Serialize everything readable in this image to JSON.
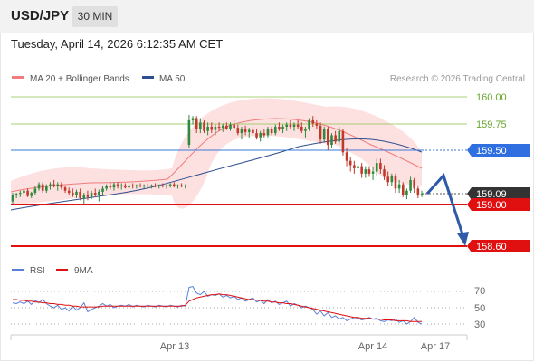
{
  "header": {
    "symbol": "USD/JPY",
    "timeframe": "30 MIN",
    "timestamp": "Tuesday, April 14, 2026 6:12:35 AM CET"
  },
  "legend": {
    "ma20_label": "MA 20 + Bollinger Bands",
    "ma50_label": "MA 50",
    "credit": "Research © 2026 Trading Central",
    "colors": {
      "ma20": "#f07c7c",
      "ma50": "#2e4f8f",
      "bollinger_fill": "#fde0e0"
    }
  },
  "levels": {
    "r2": {
      "label": "160.00",
      "color": "#8bc34a"
    },
    "r1": {
      "label": "159.75",
      "color": "#8bc34a"
    },
    "pivot": {
      "label": "159.50",
      "color": "#3a78d8"
    },
    "current": {
      "label": "159.09",
      "color": "#333333"
    },
    "s1": {
      "label": "159.00",
      "color": "#e01010"
    },
    "s2": {
      "label": "158.60",
      "color": "#e01010"
    }
  },
  "rsi": {
    "rsi_label": "RSI",
    "ma_label": "9MA",
    "levels": [
      "70",
      "50",
      "30"
    ],
    "colors": {
      "rsi": "#5b7fd6",
      "ma": "#e01010"
    }
  },
  "xaxis": {
    "labels": [
      "Apr 13",
      "Apr 14",
      "Apr 17"
    ]
  },
  "chart_data": {
    "type": "candlestick",
    "price_ylim": [
      158.55,
      160.05
    ],
    "candles_ohlc": [
      [
        159.02,
        159.1,
        159.0,
        159.08
      ],
      [
        159.08,
        159.1,
        159.05,
        159.09
      ],
      [
        159.09,
        159.12,
        159.06,
        159.1
      ],
      [
        159.1,
        159.14,
        159.08,
        159.12
      ],
      [
        159.12,
        159.14,
        159.06,
        159.07
      ],
      [
        159.07,
        159.11,
        159.05,
        159.1
      ],
      [
        159.1,
        159.16,
        159.08,
        159.14
      ],
      [
        159.14,
        159.2,
        159.12,
        159.18
      ],
      [
        159.18,
        159.2,
        159.1,
        159.12
      ],
      [
        159.12,
        159.18,
        159.1,
        159.16
      ],
      [
        159.16,
        159.2,
        159.13,
        159.18
      ],
      [
        159.18,
        159.22,
        159.15,
        159.16
      ],
      [
        159.16,
        159.2,
        159.12,
        159.18
      ],
      [
        159.18,
        159.2,
        159.13,
        159.15
      ],
      [
        159.15,
        159.17,
        159.1,
        159.12
      ],
      [
        159.12,
        159.15,
        159.08,
        159.1
      ],
      [
        159.1,
        159.14,
        159.06,
        159.08
      ],
      [
        159.08,
        159.13,
        159.05,
        159.11
      ],
      [
        159.11,
        159.14,
        159.03,
        159.05
      ],
      [
        159.05,
        159.1,
        159.0,
        159.08
      ],
      [
        159.08,
        159.12,
        159.03,
        159.06
      ],
      [
        159.06,
        159.12,
        159.04,
        159.1
      ],
      [
        159.1,
        159.14,
        159.06,
        159.08
      ],
      [
        159.08,
        159.13,
        159.02,
        159.11
      ],
      [
        159.11,
        159.16,
        159.08,
        159.14
      ],
      [
        159.14,
        159.18,
        159.12,
        159.16
      ],
      [
        159.16,
        159.2,
        159.13,
        159.15
      ],
      [
        159.15,
        159.2,
        159.12,
        159.18
      ],
      [
        159.18,
        159.2,
        159.14,
        159.16
      ],
      [
        159.16,
        159.19,
        159.13,
        159.17
      ],
      [
        159.17,
        159.19,
        159.14,
        159.15
      ],
      [
        159.15,
        159.18,
        159.13,
        159.17
      ],
      [
        159.17,
        159.19,
        159.14,
        159.16
      ],
      [
        159.16,
        159.18,
        159.14,
        159.17
      ],
      [
        159.17,
        159.19,
        159.15,
        159.16
      ],
      [
        159.16,
        159.18,
        159.14,
        159.17
      ],
      [
        159.17,
        159.19,
        159.15,
        159.16
      ],
      [
        159.16,
        159.18,
        159.14,
        159.17
      ],
      [
        159.17,
        159.19,
        159.15,
        159.16
      ],
      [
        159.16,
        159.18,
        159.14,
        159.17
      ],
      [
        159.17,
        159.19,
        159.15,
        159.16
      ],
      [
        159.16,
        159.18,
        159.14,
        159.17
      ],
      [
        159.17,
        159.19,
        159.15,
        159.18
      ],
      [
        159.18,
        159.2,
        159.15,
        159.16
      ],
      [
        159.16,
        159.18,
        159.14,
        159.17
      ],
      [
        159.17,
        159.19,
        159.15,
        159.16
      ],
      [
        159.16,
        159.18,
        159.14,
        159.17
      ],
      [
        159.55,
        159.83,
        159.52,
        159.78
      ],
      [
        159.78,
        159.82,
        159.74,
        159.8
      ],
      [
        159.8,
        159.82,
        159.66,
        159.7
      ],
      [
        159.7,
        159.8,
        159.66,
        159.76
      ],
      [
        159.76,
        159.78,
        159.66,
        159.68
      ],
      [
        159.68,
        159.76,
        159.64,
        159.72
      ],
      [
        159.72,
        159.76,
        159.66,
        159.69
      ],
      [
        159.69,
        159.74,
        159.64,
        159.72
      ],
      [
        159.72,
        159.76,
        159.68,
        159.71
      ],
      [
        159.71,
        159.75,
        159.67,
        159.73
      ],
      [
        159.73,
        159.76,
        159.69,
        159.7
      ],
      [
        159.7,
        159.76,
        159.68,
        159.74
      ],
      [
        159.74,
        159.78,
        159.7,
        159.71
      ],
      [
        159.71,
        159.74,
        159.64,
        159.66
      ],
      [
        159.66,
        159.72,
        159.6,
        159.7
      ],
      [
        159.7,
        159.73,
        159.64,
        159.67
      ],
      [
        159.67,
        159.71,
        159.62,
        159.69
      ],
      [
        159.69,
        159.72,
        159.64,
        159.66
      ],
      [
        159.66,
        159.7,
        159.6,
        159.62
      ],
      [
        159.62,
        159.68,
        159.58,
        159.66
      ],
      [
        159.66,
        159.7,
        159.62,
        159.64
      ],
      [
        159.64,
        159.72,
        159.62,
        159.7
      ],
      [
        159.7,
        159.72,
        159.64,
        159.66
      ],
      [
        159.66,
        159.74,
        159.64,
        159.72
      ],
      [
        159.72,
        159.76,
        159.68,
        159.7
      ],
      [
        159.7,
        159.74,
        159.66,
        159.72
      ],
      [
        159.72,
        159.76,
        159.68,
        159.74
      ],
      [
        159.74,
        159.78,
        159.7,
        159.72
      ],
      [
        159.72,
        159.76,
        159.68,
        159.74
      ],
      [
        159.74,
        159.78,
        159.7,
        159.72
      ],
      [
        159.72,
        159.76,
        159.66,
        159.68
      ],
      [
        159.68,
        159.72,
        159.62,
        159.7
      ],
      [
        159.7,
        159.8,
        159.68,
        159.78
      ],
      [
        159.78,
        159.82,
        159.72,
        159.75
      ],
      [
        159.75,
        159.78,
        159.7,
        159.73
      ],
      [
        159.73,
        159.76,
        159.56,
        159.6
      ],
      [
        159.6,
        159.72,
        159.58,
        159.7
      ],
      [
        159.7,
        159.72,
        159.5,
        159.55
      ],
      [
        159.55,
        159.66,
        159.52,
        159.64
      ],
      [
        159.64,
        159.68,
        159.56,
        159.58
      ],
      [
        159.58,
        159.72,
        159.55,
        159.68
      ],
      [
        159.68,
        159.7,
        159.45,
        159.48
      ],
      [
        159.48,
        159.52,
        159.35,
        159.4
      ],
      [
        159.4,
        159.44,
        159.3,
        159.36
      ],
      [
        159.36,
        159.4,
        159.28,
        159.33
      ],
      [
        159.33,
        159.38,
        159.28,
        159.35
      ],
      [
        159.35,
        159.38,
        159.24,
        159.28
      ],
      [
        159.28,
        159.35,
        159.24,
        159.32
      ],
      [
        159.32,
        159.35,
        159.25,
        159.28
      ],
      [
        159.28,
        159.34,
        159.22,
        159.3
      ],
      [
        159.3,
        159.42,
        159.26,
        159.38
      ],
      [
        159.38,
        159.42,
        159.28,
        159.32
      ],
      [
        159.32,
        159.36,
        159.22,
        159.25
      ],
      [
        159.25,
        159.3,
        159.16,
        159.2
      ],
      [
        159.2,
        159.28,
        159.16,
        159.26
      ],
      [
        159.26,
        159.28,
        159.1,
        159.14
      ],
      [
        159.14,
        159.22,
        159.1,
        159.18
      ],
      [
        159.18,
        159.2,
        159.06,
        159.08
      ],
      [
        159.08,
        159.14,
        159.04,
        159.12
      ],
      [
        159.12,
        159.25,
        159.1,
        159.22
      ],
      [
        159.22,
        159.24,
        159.1,
        159.14
      ],
      [
        159.14,
        159.16,
        159.05,
        159.08
      ],
      [
        159.08,
        159.12,
        159.06,
        159.09
      ]
    ],
    "rsi_ylim": [
      20,
      80
    ],
    "rsi_values": [
      56,
      55,
      57,
      55,
      58,
      54,
      59,
      56,
      60,
      55,
      52,
      50,
      53,
      48,
      50,
      46,
      52,
      47,
      50,
      56,
      45,
      48,
      50,
      52,
      55,
      52,
      54,
      50,
      52,
      53,
      52,
      54,
      51,
      53,
      52,
      51,
      53,
      52,
      51,
      53,
      52,
      51,
      53,
      52,
      51,
      53,
      52,
      75,
      76,
      68,
      66,
      70,
      64,
      66,
      65,
      67,
      63,
      65,
      62,
      64,
      60,
      62,
      58,
      60,
      62,
      57,
      59,
      55,
      60,
      56,
      58,
      54,
      56,
      58,
      52,
      55,
      53,
      50,
      52,
      50,
      48,
      42,
      46,
      40,
      44,
      38,
      40,
      36,
      38,
      34,
      36,
      38,
      37,
      35,
      36,
      38,
      36,
      37,
      34,
      33,
      35,
      34,
      36,
      32,
      34,
      30,
      33,
      38,
      32,
      30
    ],
    "rsi_ma_values": [
      60,
      60,
      59,
      59,
      58,
      58,
      57,
      57,
      56,
      56,
      55,
      55,
      54,
      54,
      53,
      53,
      52,
      52,
      51,
      51,
      51,
      51,
      51,
      51,
      52,
      52,
      52,
      52,
      52,
      52,
      52,
      52,
      52,
      52,
      52,
      52,
      52,
      52,
      52,
      52,
      52,
      52,
      52,
      52,
      52,
      52,
      53,
      58,
      60,
      62,
      63,
      64,
      65,
      66,
      66,
      67,
      66,
      66,
      65,
      64,
      63,
      62,
      61,
      60,
      60,
      59,
      59,
      58,
      58,
      57,
      57,
      56,
      56,
      55,
      55,
      54,
      53,
      52,
      51,
      50,
      49,
      48,
      47,
      46,
      45,
      44,
      43,
      42,
      41,
      40,
      39,
      38,
      38,
      37,
      37,
      37,
      36,
      36,
      36,
      35,
      35,
      35,
      34,
      34,
      34,
      34,
      33,
      33,
      33,
      33
    ]
  }
}
